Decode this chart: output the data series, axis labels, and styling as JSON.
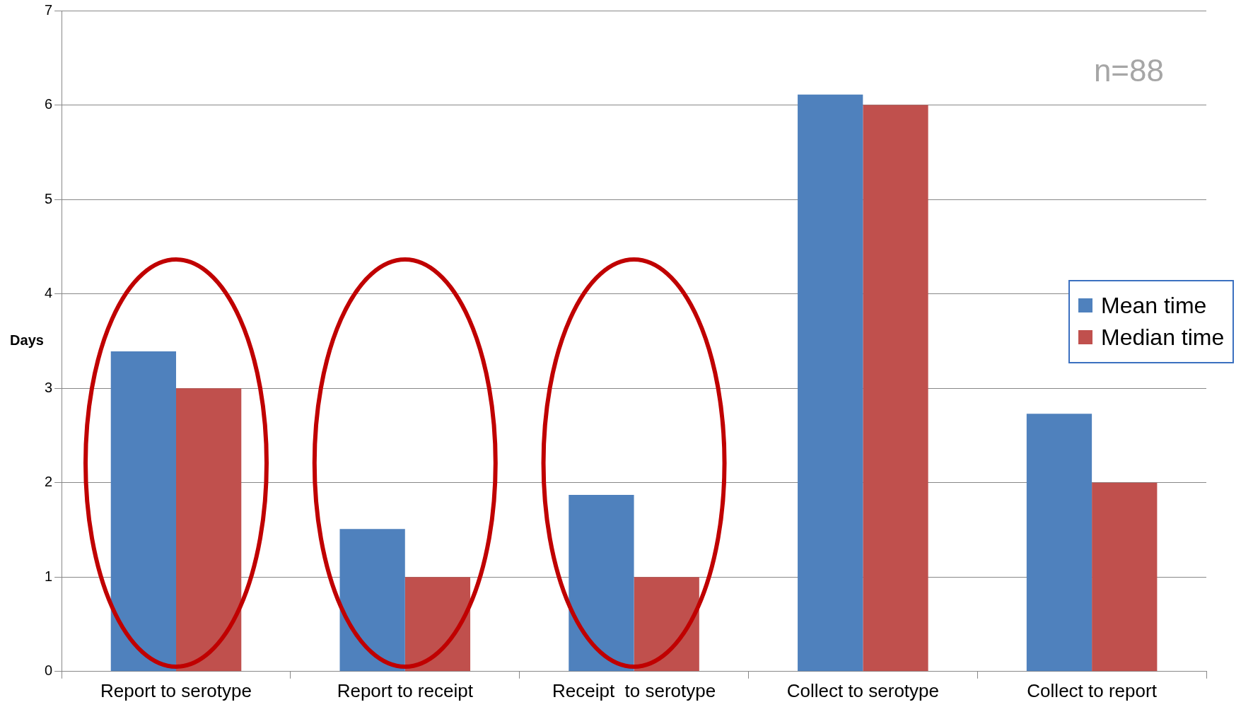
{
  "chart_data": {
    "type": "bar",
    "ylabel": "Days",
    "categories": [
      "Report to serotype",
      "Report to receipt",
      "Receipt  to serotype",
      "Collect to serotype",
      "Collect to report"
    ],
    "series": [
      {
        "name": "Mean time",
        "color": "#4f81bd",
        "values": [
          3.39,
          1.51,
          1.87,
          6.11,
          2.73
        ]
      },
      {
        "name": "Median time",
        "color": "#c0504d",
        "values": [
          3,
          1,
          1,
          6,
          2
        ]
      }
    ],
    "ylim": [
      0,
      7
    ],
    "yticks": [
      0,
      1,
      2,
      3,
      4,
      5,
      6,
      7
    ],
    "grid": "y",
    "legend": "right",
    "annotations": [
      "n=88"
    ]
  }
}
